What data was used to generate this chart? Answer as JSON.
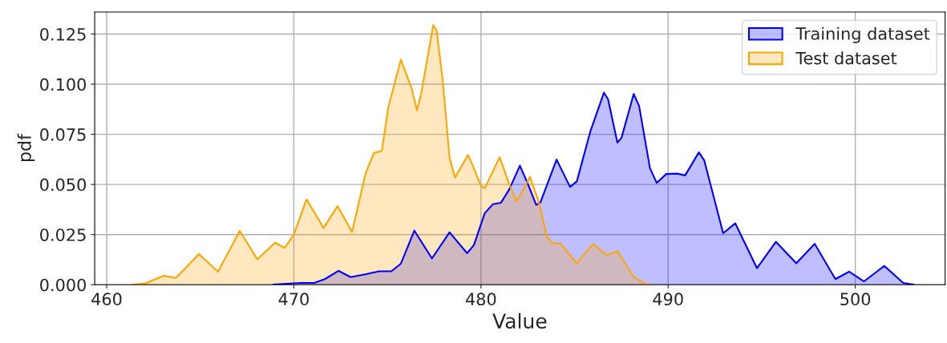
{
  "chart_data": {
    "type": "area",
    "xlabel": "Value",
    "ylabel": "pdf",
    "xlim": [
      459.36,
      504.8
    ],
    "ylim": [
      0,
      0.136
    ],
    "xticks": [
      460,
      470,
      480,
      490,
      500
    ],
    "yticks": [
      {
        "value": 0,
        "label": "0.000"
      },
      {
        "value": 0.025,
        "label": "0.025"
      },
      {
        "value": 0.05,
        "label": "0.050"
      },
      {
        "value": 0.075,
        "label": "0.075"
      },
      {
        "value": 0.1,
        "label": "0.100"
      },
      {
        "value": 0.125,
        "label": "0.125"
      }
    ],
    "grid": true,
    "legend": "top right",
    "series": [
      {
        "name": "Training dataset",
        "color": "#0000ff",
        "x": [
          468.91,
          470.36,
          471.09,
          471.66,
          472.39,
          473.04,
          473.83,
          474.56,
          475.21,
          475.72,
          476.44,
          477.38,
          478.32,
          479.26,
          479.62,
          480.2,
          480.64,
          481.07,
          481.51,
          482.08,
          482.45,
          482.95,
          483.17,
          484.04,
          484.76,
          485.12,
          485.85,
          486.57,
          486.79,
          487.29,
          487.51,
          488.16,
          488.45,
          489.03,
          489.39,
          489.9,
          490.48,
          490.91,
          491.64,
          491.93,
          492.94,
          493.59,
          494.75,
          495.76,
          496.85,
          497.83,
          498.94,
          499.67,
          500.46,
          501.55,
          502.56,
          503.14
        ],
        "values": [
          0.0001,
          0.0009,
          0.0009,
          0.0028,
          0.0069,
          0.0038,
          0.0052,
          0.0067,
          0.0067,
          0.0105,
          0.027,
          0.0131,
          0.0261,
          0.0157,
          0.0197,
          0.0356,
          0.0402,
          0.0409,
          0.0475,
          0.0594,
          0.0515,
          0.0398,
          0.0409,
          0.0624,
          0.0488,
          0.0515,
          0.0766,
          0.0958,
          0.0925,
          0.0709,
          0.0733,
          0.0951,
          0.0892,
          0.0581,
          0.0508,
          0.0552,
          0.0554,
          0.0545,
          0.066,
          0.062,
          0.0257,
          0.0306,
          0.0082,
          0.0214,
          0.0107,
          0.0204,
          0.0028,
          0.0065,
          0.0016,
          0.0094,
          0.0009,
          0
        ]
      },
      {
        "name": "Test dataset",
        "color": "#ffa500",
        "x": [
          461.39,
          462.11,
          463.05,
          463.7,
          464.93,
          465.95,
          467.11,
          468.05,
          468.99,
          469.52,
          470.0,
          470.68,
          471.59,
          472.34,
          473.11,
          473.83,
          474.27,
          474.7,
          475.05,
          475.72,
          476.3,
          476.58,
          476.8,
          477.45,
          477.63,
          477.96,
          478.32,
          478.61,
          479.31,
          479.62,
          479.99,
          480.2,
          481.0,
          481.51,
          481.91,
          482.62,
          483.1,
          483.53,
          483.82,
          484.25,
          485.12,
          485.99,
          486.71,
          487.29,
          488.16,
          488.74,
          489.03
        ],
        "values": [
          0,
          0.0008,
          0.0045,
          0.0034,
          0.0153,
          0.0065,
          0.0269,
          0.0127,
          0.0209,
          0.0184,
          0.025,
          0.0425,
          0.0283,
          0.0392,
          0.0263,
          0.0554,
          0.0656,
          0.0667,
          0.0885,
          0.1123,
          0.0978,
          0.0869,
          0.0951,
          0.1295,
          0.1269,
          0.1017,
          0.0634,
          0.0534,
          0.0647,
          0.0581,
          0.0495,
          0.0482,
          0.0636,
          0.0501,
          0.0415,
          0.0538,
          0.0409,
          0.0237,
          0.0208,
          0.0204,
          0.0107,
          0.0204,
          0.0147,
          0.0168,
          0.0038,
          0.0005,
          0
        ]
      }
    ]
  }
}
